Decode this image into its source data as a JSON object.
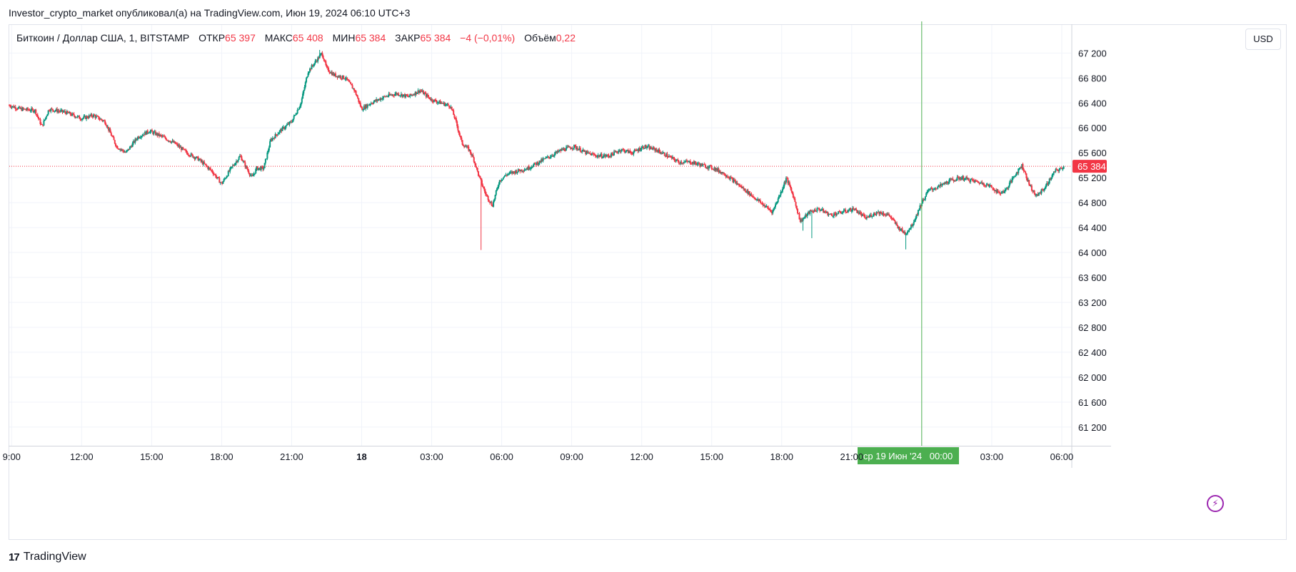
{
  "header": {
    "published_by": "Investor_crypto_market опубликовал(а) на TradingView.com, Июн 19, 2024 06:10 UTC+3"
  },
  "legend": {
    "symbol": "Биткоин / Доллар США, 1, BITSTAMP",
    "open_label": "ОТКР",
    "open_value": "65 397",
    "high_label": "МАКС",
    "high_value": "65 408",
    "low_label": "МИН",
    "low_value": "65 384",
    "close_label": "ЗАКР",
    "close_value": "65 384",
    "change": "−4 (−0,01%)",
    "volume_label": "Объём",
    "volume_value": "0,22"
  },
  "currency_button": "USD",
  "brand": "TradingView",
  "colors": {
    "up": "#089981",
    "down": "#f23645",
    "crosshair": "#4caf50",
    "grid": "#f0f3fa",
    "alert": "#9c27b0"
  },
  "chart_data": {
    "type": "candlestick",
    "symbol": "BTCUSD",
    "interval_minutes": 1,
    "last_price": 65384,
    "last_price_label": "65 384",
    "ylim": [
      60900,
      67650
    ],
    "y_ticks": [
      61200,
      61600,
      62000,
      62400,
      62800,
      63200,
      63600,
      64000,
      64400,
      64800,
      65200,
      65600,
      66000,
      66400,
      66800,
      67200
    ],
    "y_tick_labels": [
      "61 200",
      "61 600",
      "62 000",
      "62 400",
      "62 800",
      "63 200",
      "63 600",
      "64 000",
      "64 400",
      "64 800",
      "65 200",
      "65 600",
      "66 000",
      "66 400",
      "66 800",
      "67 200"
    ],
    "xlim_hours": [
      8.9,
      54.4
    ],
    "x_ticks": [
      {
        "hour": 9,
        "label": "9:00"
      },
      {
        "hour": 12,
        "label": "12:00"
      },
      {
        "hour": 15,
        "label": "15:00"
      },
      {
        "hour": 18,
        "label": "18:00"
      },
      {
        "hour": 21,
        "label": "21:00"
      },
      {
        "hour": 24,
        "label": "18",
        "bold": true
      },
      {
        "hour": 27,
        "label": "03:00"
      },
      {
        "hour": 30,
        "label": "06:00"
      },
      {
        "hour": 33,
        "label": "09:00"
      },
      {
        "hour": 36,
        "label": "12:00"
      },
      {
        "hour": 39,
        "label": "15:00"
      },
      {
        "hour": 42,
        "label": "18:00"
      },
      {
        "hour": 45,
        "label": "21:00"
      },
      {
        "hour": 51,
        "label": "03:00"
      },
      {
        "hour": 54,
        "label": "06:00"
      }
    ],
    "crosshair": {
      "hour": 48,
      "date_label": "ср 19 Июн '24",
      "time_label": "00:00"
    },
    "price_path": [
      [
        8.9,
        66360
      ],
      [
        9.4,
        66300
      ],
      [
        10.0,
        66280
      ],
      [
        10.3,
        66020
      ],
      [
        10.6,
        66300
      ],
      [
        11.3,
        66250
      ],
      [
        12.0,
        66150
      ],
      [
        12.5,
        66200
      ],
      [
        13.0,
        66100
      ],
      [
        13.5,
        65700
      ],
      [
        13.9,
        65600
      ],
      [
        14.4,
        65850
      ],
      [
        14.9,
        65950
      ],
      [
        15.5,
        65850
      ],
      [
        16.0,
        65750
      ],
      [
        16.5,
        65600
      ],
      [
        17.0,
        65500
      ],
      [
        17.6,
        65300
      ],
      [
        18.0,
        65100
      ],
      [
        18.4,
        65350
      ],
      [
        18.8,
        65550
      ],
      [
        19.0,
        65400
      ],
      [
        19.3,
        65200
      ],
      [
        19.5,
        65350
      ],
      [
        19.8,
        65350
      ],
      [
        20.1,
        65800
      ],
      [
        20.5,
        65950
      ],
      [
        21.0,
        66100
      ],
      [
        21.4,
        66400
      ],
      [
        21.7,
        66900
      ],
      [
        22.0,
        67050
      ],
      [
        22.3,
        67200
      ],
      [
        22.5,
        66950
      ],
      [
        22.8,
        66850
      ],
      [
        23.3,
        66800
      ],
      [
        23.7,
        66600
      ],
      [
        24.0,
        66300
      ],
      [
        24.4,
        66400
      ],
      [
        25.0,
        66500
      ],
      [
        25.5,
        66550
      ],
      [
        26.0,
        66500
      ],
      [
        26.5,
        66600
      ],
      [
        27.0,
        66450
      ],
      [
        27.4,
        66400
      ],
      [
        27.8,
        66350
      ],
      [
        28.0,
        66150
      ],
      [
        28.3,
        65750
      ],
      [
        28.6,
        65650
      ],
      [
        28.8,
        65500
      ],
      [
        29.0,
        65250
      ],
      [
        29.3,
        64950
      ],
      [
        29.6,
        64750
      ],
      [
        29.9,
        65150
      ],
      [
        30.2,
        65250
      ],
      [
        30.6,
        65300
      ],
      [
        31.1,
        65350
      ],
      [
        31.6,
        65450
      ],
      [
        32.1,
        65550
      ],
      [
        32.6,
        65650
      ],
      [
        33.1,
        65700
      ],
      [
        33.6,
        65600
      ],
      [
        34.1,
        65550
      ],
      [
        34.6,
        65550
      ],
      [
        35.1,
        65650
      ],
      [
        35.6,
        65600
      ],
      [
        36.1,
        65700
      ],
      [
        36.6,
        65650
      ],
      [
        37.1,
        65550
      ],
      [
        37.6,
        65450
      ],
      [
        38.1,
        65450
      ],
      [
        38.6,
        65400
      ],
      [
        39.1,
        65350
      ],
      [
        39.6,
        65250
      ],
      [
        40.1,
        65100
      ],
      [
        40.6,
        64950
      ],
      [
        41.1,
        64800
      ],
      [
        41.6,
        64650
      ],
      [
        42.0,
        65000
      ],
      [
        42.2,
        65200
      ],
      [
        42.5,
        64900
      ],
      [
        42.8,
        64500
      ],
      [
        43.2,
        64650
      ],
      [
        43.6,
        64700
      ],
      [
        44.1,
        64600
      ],
      [
        44.6,
        64650
      ],
      [
        45.1,
        64700
      ],
      [
        45.6,
        64550
      ],
      [
        46.1,
        64650
      ],
      [
        46.6,
        64600
      ],
      [
        47.0,
        64400
      ],
      [
        47.3,
        64300
      ],
      [
        47.6,
        64450
      ],
      [
        48.0,
        64800
      ],
      [
        48.3,
        65000
      ],
      [
        48.7,
        65050
      ],
      [
        49.2,
        65150
      ],
      [
        49.7,
        65200
      ],
      [
        50.2,
        65150
      ],
      [
        50.7,
        65100
      ],
      [
        51.0,
        65050
      ],
      [
        51.3,
        64950
      ],
      [
        51.6,
        65000
      ],
      [
        52.0,
        65250
      ],
      [
        52.3,
        65400
      ],
      [
        52.6,
        65100
      ],
      [
        52.9,
        64900
      ],
      [
        53.3,
        65050
      ],
      [
        53.7,
        65300
      ],
      [
        54.0,
        65350
      ],
      [
        54.1,
        65384
      ]
    ],
    "wick_extremes": [
      {
        "hour": 22.2,
        "high": 67250
      },
      {
        "hour": 29.1,
        "low": 64040
      },
      {
        "hour": 42.9,
        "low": 64350
      },
      {
        "hour": 43.3,
        "low": 64230
      },
      {
        "hour": 47.3,
        "low": 64050
      }
    ]
  }
}
